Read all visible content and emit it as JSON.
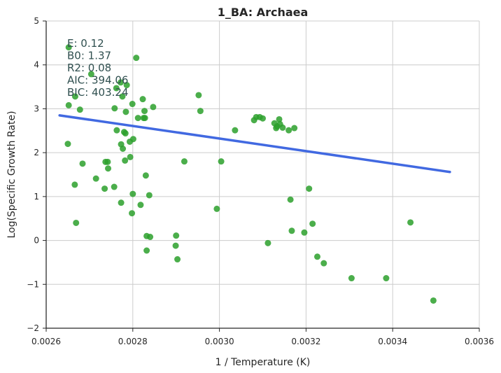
{
  "chart_data": {
    "type": "scatter",
    "title": "1_BA: Archaea",
    "xlabel": "1 / Temperature (K)",
    "ylabel": "Log(Specific Growth Rate)",
    "xlim": [
      0.0026,
      0.0036
    ],
    "ylim": [
      -2,
      5
    ],
    "xticks": [
      "0.0026",
      "0.0028",
      "0.0030",
      "0.0032",
      "0.0034",
      "0.0036"
    ],
    "yticks": [
      "−2",
      "−1",
      "0",
      "1",
      "2",
      "3",
      "4",
      "5"
    ],
    "grid": true,
    "annotations": [
      "E:  0.12",
      "B0:  1.37",
      "R2:  0.08",
      "AIC: 394.06",
      "BIC: 403.24"
    ],
    "colors": {
      "points": "#2ca02c",
      "fit_line": "#4169e1"
    },
    "fit_line": {
      "x": [
        0.002631,
        0.003532
      ],
      "y": [
        2.85,
        1.56
      ]
    },
    "points": {
      "x": [
        0.002652,
        0.002667,
        0.002678,
        0.002652,
        0.002684,
        0.002669,
        0.00265,
        0.002666,
        0.002704,
        0.002715,
        0.002735,
        0.002742,
        0.002743,
        0.002757,
        0.002758,
        0.002762,
        0.002763,
        0.002772,
        0.002773,
        0.002776,
        0.002777,
        0.00278,
        0.002782,
        0.002783,
        0.002784,
        0.002786,
        0.002793,
        0.002794,
        0.002798,
        0.002799,
        0.0028,
        0.002801,
        0.002808,
        0.002818,
        0.002823,
        0.002827,
        0.002828,
        0.00283,
        0.002832,
        0.002838,
        0.00284,
        0.002847,
        0.002899,
        0.0029,
        0.002903,
        0.002919,
        0.002952,
        0.002956,
        0.002994,
        0.003004,
        0.003036,
        0.00308,
        0.003085,
        0.003093,
        0.0031,
        0.003112,
        0.003127,
        0.003131,
        0.003133,
        0.003138,
        0.00314,
        0.003146,
        0.00316,
        0.003164,
        0.003167,
        0.003173,
        0.003196,
        0.003207,
        0.003215,
        0.003226,
        0.003241,
        0.003305,
        0.003385,
        0.003441,
        0.003494,
        0.002773,
        0.002737,
        0.002832,
        0.002825,
        0.002812
      ],
      "y": [
        4.4,
        3.28,
        2.98,
        3.08,
        1.75,
        0.4,
        2.2,
        1.27,
        3.79,
        1.41,
        1.18,
        1.79,
        1.64,
        1.22,
        3.01,
        3.47,
        2.51,
        3.6,
        2.19,
        3.28,
        2.09,
        2.47,
        1.82,
        2.44,
        2.93,
        3.54,
        2.25,
        1.9,
        0.62,
        3.11,
        1.06,
        2.31,
        4.16,
        0.81,
        3.22,
        2.95,
        2.79,
        1.48,
        -0.23,
        1.03,
        0.08,
        3.04,
        -0.12,
        0.11,
        -0.43,
        1.8,
        3.31,
        2.95,
        0.72,
        1.8,
        2.51,
        2.74,
        2.81,
        2.81,
        2.78,
        -0.06,
        2.67,
        2.56,
        2.6,
        2.76,
        2.65,
        2.57,
        2.51,
        0.93,
        0.22,
        2.56,
        0.18,
        1.18,
        0.38,
        -0.37,
        -0.52,
        -0.86,
        -0.86,
        0.41,
        -1.37,
        0.86,
        1.79,
        0.1,
        2.79,
        2.79
      ]
    }
  }
}
